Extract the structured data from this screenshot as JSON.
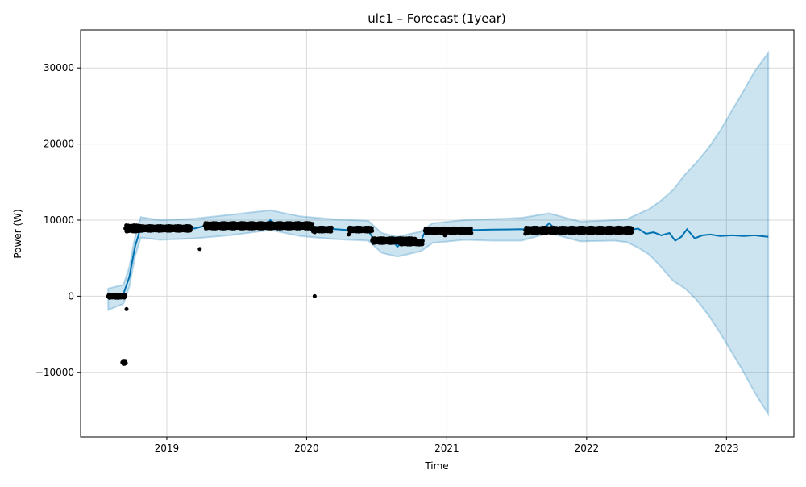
{
  "chart_data": {
    "type": "line",
    "title": "ulc1 – Forecast (1year)",
    "xlabel": "Time",
    "ylabel": "Power (W)",
    "x_axis": {
      "type": "time",
      "range": [
        "2018-05-21",
        "2023-06-26"
      ],
      "ticks": [
        "2019",
        "2020",
        "2021",
        "2022",
        "2023"
      ]
    },
    "y_axis": {
      "range": [
        -18500,
        35000
      ],
      "ticks": [
        -10000,
        0,
        10000,
        20000,
        30000
      ],
      "tick_labels": [
        "−10000",
        "0",
        "10000",
        "20000",
        "30000"
      ]
    },
    "grid": true,
    "legend": "none",
    "colors": {
      "forecast": "#0072B2",
      "interval": "#0072B2",
      "observed": "#000000",
      "grid": "#d9d9d9"
    },
    "series": [
      {
        "role": "forecast",
        "style": "line",
        "points": [
          [
            "2018-08-01",
            -300
          ],
          [
            "2018-08-20",
            -100
          ],
          [
            "2018-09-10",
            300
          ],
          [
            "2018-09-25",
            2500
          ],
          [
            "2018-10-10",
            6500
          ],
          [
            "2018-10-25",
            9000
          ],
          [
            "2018-11-15",
            9100
          ],
          [
            "2018-12-15",
            8700
          ],
          [
            "2019-01-15",
            8800
          ],
          [
            "2019-02-15",
            9000
          ],
          [
            "2019-03-15",
            8900
          ],
          [
            "2019-04-15",
            9300
          ],
          [
            "2019-05-15",
            9200
          ],
          [
            "2019-06-15",
            9400
          ],
          [
            "2019-07-15",
            9100
          ],
          [
            "2019-08-15",
            9300
          ],
          [
            "2019-09-10",
            8800
          ],
          [
            "2019-09-28",
            10000
          ],
          [
            "2019-10-20",
            9200
          ],
          [
            "2019-11-15",
            9300
          ],
          [
            "2019-12-15",
            9200
          ],
          [
            "2020-01-15",
            9100
          ],
          [
            "2020-02-15",
            8900
          ],
          [
            "2020-03-15",
            8800
          ],
          [
            "2020-04-15",
            8700
          ],
          [
            "2020-05-15",
            8800
          ],
          [
            "2020-06-10",
            8600
          ],
          [
            "2020-06-25",
            7400
          ],
          [
            "2020-07-15",
            7000
          ],
          [
            "2020-08-05",
            7600
          ],
          [
            "2020-08-25",
            6500
          ],
          [
            "2020-09-15",
            7400
          ],
          [
            "2020-10-10",
            7100
          ],
          [
            "2020-10-25",
            7200
          ],
          [
            "2020-11-05",
            8500
          ],
          [
            "2020-11-25",
            8300
          ],
          [
            "2020-12-15",
            8700
          ],
          [
            "2021-01-15",
            8600
          ],
          [
            "2021-02-15",
            8700
          ],
          [
            "2021-03-15",
            8700
          ],
          [
            "2021-05-01",
            8750
          ],
          [
            "2021-07-15",
            8800
          ],
          [
            "2021-08-15",
            8700
          ],
          [
            "2021-09-05",
            8500
          ],
          [
            "2021-09-25",
            9600
          ],
          [
            "2021-10-15",
            8600
          ],
          [
            "2021-11-15",
            8800
          ],
          [
            "2021-12-15",
            8500
          ],
          [
            "2022-01-15",
            8700
          ],
          [
            "2022-02-15",
            8500
          ],
          [
            "2022-03-15",
            8700
          ],
          [
            "2022-04-15",
            8600
          ],
          [
            "2022-05-15",
            8900
          ],
          [
            "2022-06-05",
            8200
          ],
          [
            "2022-06-25",
            8400
          ],
          [
            "2022-07-15",
            8000
          ],
          [
            "2022-08-05",
            8300
          ],
          [
            "2022-08-20",
            7300
          ],
          [
            "2022-09-05",
            7800
          ],
          [
            "2022-09-20",
            8800
          ],
          [
            "2022-10-10",
            7600
          ],
          [
            "2022-10-30",
            8000
          ],
          [
            "2022-11-20",
            8100
          ],
          [
            "2022-12-15",
            7900
          ],
          [
            "2023-01-15",
            8000
          ],
          [
            "2023-02-15",
            7900
          ],
          [
            "2023-03-15",
            8000
          ],
          [
            "2023-04-20",
            7800
          ]
        ]
      },
      {
        "role": "uncertainty_interval",
        "style": "band",
        "points": [
          [
            "2018-08-01",
            -1800,
            1000
          ],
          [
            "2018-09-10",
            -1000,
            1500
          ],
          [
            "2018-09-25",
            1200,
            3800
          ],
          [
            "2018-10-10",
            5200,
            7800
          ],
          [
            "2018-10-25",
            7700,
            10400
          ],
          [
            "2018-12-15",
            7400,
            10000
          ],
          [
            "2019-03-15",
            7600,
            10200
          ],
          [
            "2019-06-15",
            8000,
            10700
          ],
          [
            "2019-09-28",
            8700,
            11300
          ],
          [
            "2019-12-15",
            7900,
            10500
          ],
          [
            "2020-03-15",
            7500,
            10100
          ],
          [
            "2020-06-10",
            7300,
            9900
          ],
          [
            "2020-07-15",
            5700,
            8300
          ],
          [
            "2020-08-25",
            5200,
            7800
          ],
          [
            "2020-10-25",
            5900,
            8500
          ],
          [
            "2020-11-25",
            7000,
            9600
          ],
          [
            "2021-02-15",
            7400,
            10000
          ],
          [
            "2021-05-01",
            7300,
            10150
          ],
          [
            "2021-07-15",
            7300,
            10300
          ],
          [
            "2021-09-25",
            8300,
            10900
          ],
          [
            "2021-12-15",
            7200,
            9800
          ],
          [
            "2022-03-15",
            7300,
            10000
          ],
          [
            "2022-04-15",
            7100,
            10100
          ],
          [
            "2022-05-15",
            6400,
            10800
          ],
          [
            "2022-06-15",
            5400,
            11500
          ],
          [
            "2022-07-15",
            3800,
            12600
          ],
          [
            "2022-08-15",
            2000,
            14000
          ],
          [
            "2022-09-15",
            1000,
            16000
          ],
          [
            "2022-10-15",
            -500,
            17600
          ],
          [
            "2022-11-15",
            -2500,
            19500
          ],
          [
            "2022-12-15",
            -4800,
            21700
          ],
          [
            "2023-01-15",
            -7400,
            24400
          ],
          [
            "2023-02-15",
            -10000,
            27000
          ],
          [
            "2023-03-15",
            -12600,
            29500
          ],
          [
            "2023-04-20",
            -15500,
            32000
          ]
        ]
      },
      {
        "role": "observed",
        "style": "points",
        "clusters": [
          {
            "from": "2018-08-01",
            "to": "2018-09-15",
            "values": [
              -200,
              200
            ]
          },
          {
            "from": "2018-09-07",
            "to": "2018-09-15",
            "values": [
              -8900,
              -8500
            ]
          },
          {
            "from": "2018-09-15",
            "to": "2018-10-25",
            "values": [
              8500,
              9300
            ]
          },
          {
            "from": "2018-10-25",
            "to": "2019-03-05",
            "values": [
              8600,
              9200
            ]
          },
          {
            "from": "2019-04-10",
            "to": "2020-01-15",
            "values": [
              8900,
              9600
            ]
          },
          {
            "from": "2020-01-15",
            "to": "2020-03-05",
            "values": [
              8500,
              9000
            ]
          },
          {
            "from": "2020-04-20",
            "to": "2020-06-20",
            "values": [
              8500,
              9000
            ]
          },
          {
            "from": "2020-06-20",
            "to": "2020-10-10",
            "values": [
              7000,
              7600
            ]
          },
          {
            "from": "2020-09-01",
            "to": "2020-10-30",
            "values": [
              6800,
              7300
            ]
          },
          {
            "from": "2020-11-05",
            "to": "2021-03-05",
            "values": [
              8300,
              8900
            ]
          },
          {
            "from": "2021-07-25",
            "to": "2022-04-30",
            "values": [
              8300,
              9000
            ]
          }
        ],
        "outliers": [
          [
            "2018-09-18",
            -1700
          ],
          [
            "2019-03-28",
            6200
          ],
          [
            "2020-01-22",
            0
          ],
          [
            "2020-01-22",
            8400
          ],
          [
            "2020-04-20",
            8100
          ],
          [
            "2020-12-27",
            8000
          ],
          [
            "2021-07-25",
            8200
          ]
        ]
      }
    ]
  }
}
